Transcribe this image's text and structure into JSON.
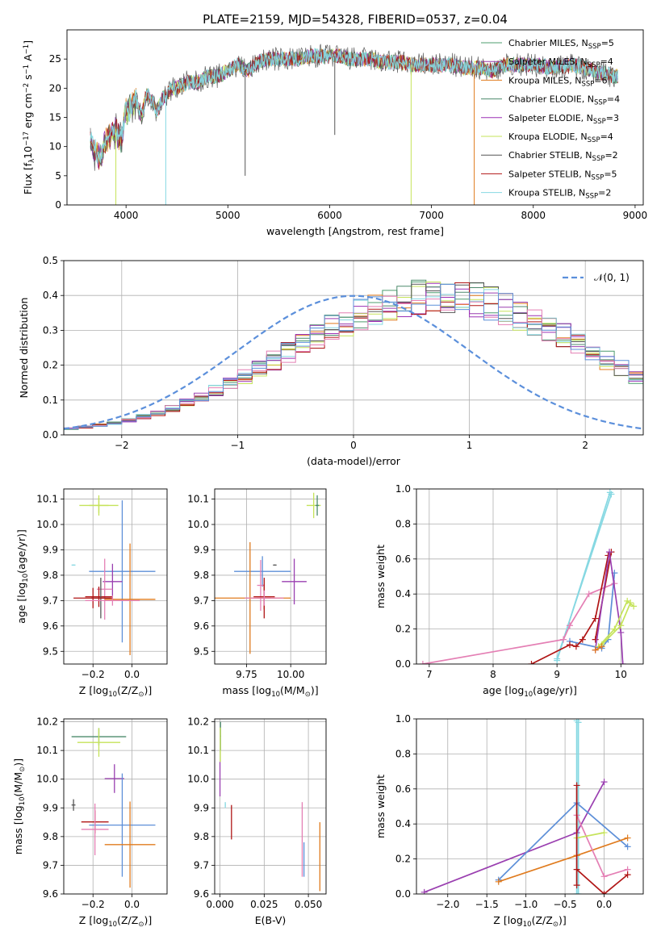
{
  "colors": [
    "#4c9c6e",
    "#9a3fb0",
    "#e07b1e",
    "#4c8a6c",
    "#9b30b5",
    "#c5e35a",
    "#555555",
    "#b01515",
    "#86d8e2",
    "#e47fb4",
    "#5d8fd8"
  ],
  "chart_data": [
    {
      "id": "spectrum",
      "type": "line",
      "title": "PLATE=2159, MJD=54328, FIBERID=0537, z=0.04",
      "xlabel": "wavelength [Angstrom, rest frame]",
      "ylabel": "Flux [f",
      "ylabel_sub": "λ",
      "ylabel_mid": "10",
      "ylabel_sup": "−17",
      "ylabel_units": " erg cm",
      "ylabel_sup2": "−2",
      "ylabel_units2": " s",
      "ylabel_sup3": "−1",
      "ylabel_units3": " A",
      "ylabel_sup4": "−1",
      "ylabel_end": "]",
      "xlim": [
        3420,
        9080
      ],
      "ylim": [
        0,
        30
      ],
      "xticks": [
        "4000",
        "5000",
        "6000",
        "7000",
        "8000",
        "9000"
      ],
      "xtick_values": [
        4000,
        5000,
        6000,
        7000,
        8000,
        9000
      ],
      "yticks": [
        "0",
        "5",
        "10",
        "15",
        "20",
        "25"
      ],
      "ytick_values": [
        0,
        5,
        10,
        15,
        20,
        25
      ],
      "continuum": {
        "x": [
          3650,
          3700,
          3750,
          3800,
          3850,
          3900,
          3950,
          4000,
          4050,
          4100,
          4150,
          4200,
          4250,
          4300,
          4350,
          4400,
          4450,
          4500,
          4600,
          4700,
          4800,
          4900,
          5000,
          5100,
          5200,
          5300,
          5400,
          5500,
          5600,
          5700,
          5800,
          5900,
          6000,
          6100,
          6200,
          6300,
          6400,
          6500,
          6600,
          6700,
          6800,
          6900,
          7000,
          7100,
          7200,
          7300,
          7400,
          7500,
          7600,
          7700,
          7800,
          7900,
          8000,
          8200,
          8400,
          8600,
          8800
        ],
        "y": [
          11,
          9,
          8,
          11,
          12,
          13,
          11,
          16,
          17,
          18,
          15,
          19,
          18,
          16,
          18,
          19,
          20,
          20,
          21,
          21,
          22,
          22,
          23,
          24,
          23,
          24.5,
          25,
          25,
          25,
          25,
          25.5,
          25.5,
          25.5,
          25.5,
          25,
          25,
          25,
          24.5,
          24.5,
          24.5,
          24,
          24,
          24,
          24,
          24,
          23.5,
          23.5,
          23.5,
          23,
          24,
          24,
          24,
          24,
          23.5,
          24,
          23,
          22
        ]
      },
      "series": [
        {
          "name": "Chabrier MILES, N",
          "sub": "SSP",
          "count": "=5"
        },
        {
          "name": "Salpeter MILES, N",
          "sub": "SSP",
          "count": "=4"
        },
        {
          "name": "Kroupa MILES, N",
          "sub": "SSP",
          "count": "=6"
        },
        {
          "name": "Chabrier ELODIE, N",
          "sub": "SSP",
          "count": "=4"
        },
        {
          "name": "Salpeter ELODIE, N",
          "sub": "SSP",
          "count": "=3"
        },
        {
          "name": "Kroupa ELODIE, N",
          "sub": "SSP",
          "count": "=4"
        },
        {
          "name": "Chabrier STELIB, N",
          "sub": "SSP",
          "count": "=2"
        },
        {
          "name": "Salpeter STELIB, N",
          "sub": "SSP",
          "count": "=5"
        },
        {
          "name": "Kroupa STELIB, N",
          "sub": "SSP",
          "count": "=2"
        }
      ],
      "drops": [
        {
          "x": 3900,
          "color": 5
        },
        {
          "x": 4390,
          "color": 8
        },
        {
          "x": 5170,
          "color": 6,
          "y": 5
        },
        {
          "x": 6050,
          "color": 6,
          "y": 12
        },
        {
          "x": 6800,
          "color": 5
        },
        {
          "x": 7420,
          "color": 2
        }
      ],
      "legend": "upper right"
    },
    {
      "id": "residuals",
      "type": "histogram",
      "xlabel": "(data-model)/error",
      "ylabel": "Normed distribution",
      "xlim": [
        -2.5,
        2.5
      ],
      "ylim": [
        0,
        0.5
      ],
      "xticks": [
        "−2",
        "−1",
        "0",
        "1",
        "2"
      ],
      "xtick_values": [
        -2,
        -1,
        0,
        1,
        2
      ],
      "yticks": [
        "0.0",
        "0.1",
        "0.2",
        "0.3",
        "0.4",
        "0.5"
      ],
      "ytick_values": [
        0,
        0.1,
        0.2,
        0.3,
        0.4,
        0.5
      ],
      "bin_width": 0.125,
      "base": [
        0.018,
        0.022,
        0.028,
        0.034,
        0.042,
        0.052,
        0.063,
        0.076,
        0.091,
        0.108,
        0.126,
        0.146,
        0.168,
        0.19,
        0.213,
        0.236,
        0.26,
        0.283,
        0.305,
        0.326,
        0.345,
        0.362,
        0.376,
        0.388,
        0.396,
        0.4,
        0.4,
        0.396,
        0.388,
        0.376,
        0.362,
        0.345,
        0.326,
        0.305,
        0.283,
        0.26,
        0.236,
        0.213,
        0.19,
        0.168,
        0.146,
        0.126,
        0.108,
        0.091,
        0.076,
        0.063,
        0.052,
        0.042,
        0.034,
        0.028
      ],
      "hist_series": 11,
      "normal_label": "𝒩(0, 1)",
      "legend": "upper right"
    },
    {
      "id": "age-vs-Z",
      "type": "scatter",
      "xlabel": "Z [log",
      "xlabel_sub": "10",
      "xlabel_mid": "(Z/Z",
      "xlabel_sub2": "⊙",
      "xlabel_end": ")]",
      "ylabel": "age  [log",
      "ylabel_sub": "10",
      "ylabel_end": "(age/yr)]",
      "xlim": [
        -0.35,
        0.18
      ],
      "ylim": [
        9.45,
        10.14
      ],
      "xticks": [
        "−0.2",
        "0.0"
      ],
      "xtick_values": [
        -0.2,
        0
      ],
      "yticks": [
        "9.5",
        "9.6",
        "9.7",
        "9.8",
        "9.9",
        "10.0",
        "10.1"
      ],
      "ytick_values": [
        9.5,
        9.6,
        9.7,
        9.8,
        9.9,
        10.0,
        10.1
      ],
      "points": [
        {
          "x": -0.17,
          "y": 10.075,
          "xerr": 0.1,
          "yerr": 0.04,
          "color": 5
        },
        {
          "x": -0.17,
          "y": 10.075,
          "xerr": 0.05,
          "yerr": 0.03,
          "color": 5
        },
        {
          "x": -0.3,
          "y": 9.84,
          "xerr": 0.01,
          "yerr": 0.002,
          "color": 8
        },
        {
          "x": -0.05,
          "y": 9.815,
          "xerr": 0.17,
          "yerr": 0.28,
          "color": 10
        },
        {
          "x": -0.1,
          "y": 9.775,
          "xerr": 0.05,
          "yerr": 0.07,
          "color": 1
        },
        {
          "x": -0.14,
          "y": 9.745,
          "xerr": 0.04,
          "yerr": 0.12,
          "color": 9
        },
        {
          "x": -0.17,
          "y": 9.715,
          "xerr": 0.07,
          "yerr": 0.04,
          "color": 7
        },
        {
          "x": -0.16,
          "y": 9.71,
          "xerr": 0.05,
          "yerr": 0.08,
          "color": 6
        },
        {
          "x": -0.2,
          "y": 9.71,
          "xerr": 0.1,
          "yerr": 0.04,
          "color": 7
        },
        {
          "x": -0.01,
          "y": 9.705,
          "xerr": 0.13,
          "yerr": 0.22,
          "color": 2
        },
        {
          "x": -0.1,
          "y": 9.7,
          "xerr": 0.14,
          "yerr": 0.02,
          "color": 9
        }
      ]
    },
    {
      "id": "age-vs-mass",
      "type": "scatter",
      "xlabel": "mass [log",
      "xlabel_sub": "10",
      "xlabel_mid": "(M/M",
      "xlabel_sub2": "⊙",
      "xlabel_end": ")]",
      "xlim": [
        9.57,
        10.2
      ],
      "ylim": [
        9.45,
        10.14
      ],
      "xticks": [
        "9.75",
        "10.00"
      ],
      "xtick_values": [
        9.75,
        10.0
      ],
      "yticks": [
        "9.5",
        "9.6",
        "9.7",
        "9.8",
        "9.9",
        "10.0",
        "10.1"
      ],
      "ytick_values": [
        9.5,
        9.6,
        9.7,
        9.8,
        9.9,
        10.0,
        10.1
      ],
      "points": [
        {
          "x": 10.13,
          "y": 10.075,
          "xerr": 0.04,
          "yerr": 0.05,
          "color": 5
        },
        {
          "x": 10.15,
          "y": 10.075,
          "xerr": 0.01,
          "yerr": 0.04,
          "color": 3
        },
        {
          "x": 9.91,
          "y": 9.84,
          "xerr": 0.01,
          "yerr": 0.002,
          "color": 6
        },
        {
          "x": 9.84,
          "y": 9.815,
          "xerr": 0.16,
          "yerr": 0.06,
          "color": 10
        },
        {
          "x": 10.02,
          "y": 9.775,
          "xerr": 0.07,
          "yerr": 0.09,
          "color": 1
        },
        {
          "x": 9.83,
          "y": 9.76,
          "xerr": 0.02,
          "yerr": 0.1,
          "color": 9
        },
        {
          "x": 9.85,
          "y": 9.715,
          "xerr": 0.06,
          "yerr": 0.05,
          "color": 7
        },
        {
          "x": 9.85,
          "y": 9.71,
          "xerr": 0.04,
          "yerr": 0.08,
          "color": 7
        },
        {
          "x": 9.77,
          "y": 9.71,
          "xerr": 0.23,
          "yerr": 0.22,
          "color": 2
        },
        {
          "x": 9.85,
          "y": 9.71,
          "xerr": 0.11,
          "yerr": 0.03,
          "color": 9
        }
      ]
    },
    {
      "id": "mass-weight-vs-age",
      "type": "line",
      "xlabel": "age  [log",
      "xlabel_sub": "10",
      "xlabel_end": "(age/yr)]",
      "ylabel": "mass weight",
      "xlim": [
        6.8,
        10.35
      ],
      "ylim": [
        0,
        1
      ],
      "xticks": [
        "7",
        "8",
        "9",
        "10"
      ],
      "xtick_values": [
        7,
        8,
        9,
        10
      ],
      "yticks": [
        "0.0",
        "0.2",
        "0.4",
        "0.6",
        "0.8",
        "1.0"
      ],
      "ytick_values": [
        0,
        0.2,
        0.4,
        0.6,
        0.8,
        1.0
      ],
      "series": [
        {
          "color": 8,
          "x": [
            9.0,
            9.83
          ],
          "y": [
            0.02,
            0.98
          ]
        },
        {
          "color": 8,
          "x": [
            9.0,
            9.85
          ],
          "y": [
            0.03,
            0.97
          ]
        },
        {
          "color": 9,
          "x": [
            6.9,
            9.1,
            9.2,
            9.5,
            9.9
          ],
          "y": [
            0.0,
            0.14,
            0.22,
            0.4,
            0.46
          ]
        },
        {
          "color": 10,
          "x": [
            9.2,
            9.7,
            9.8,
            9.9
          ],
          "y": [
            0.13,
            0.09,
            0.14,
            0.52
          ]
        },
        {
          "color": 7,
          "x": [
            8.6,
            9.2,
            9.3,
            9.4,
            9.6,
            9.8
          ],
          "y": [
            0.0,
            0.11,
            0.1,
            0.14,
            0.26,
            0.62
          ]
        },
        {
          "color": 7,
          "x": [
            9.6,
            9.85
          ],
          "y": [
            0.14,
            0.64
          ]
        },
        {
          "color": 1,
          "x": [
            9.6,
            9.82,
            10.0,
            10.03
          ],
          "y": [
            0.08,
            0.64,
            0.18,
            0.0
          ]
        },
        {
          "color": 5,
          "x": [
            9.65,
            9.9,
            10.1,
            10.2
          ],
          "y": [
            0.1,
            0.2,
            0.36,
            0.33
          ]
        },
        {
          "color": 5,
          "x": [
            9.7,
            10.0,
            10.15
          ],
          "y": [
            0.11,
            0.22,
            0.35
          ]
        },
        {
          "color": 2,
          "x": [
            9.6,
            9.7
          ],
          "y": [
            0.08,
            0.1
          ]
        }
      ]
    },
    {
      "id": "mass-vs-Z",
      "type": "scatter",
      "xlabel": "Z [log",
      "xlabel_sub": "10",
      "xlabel_mid": "(Z/Z",
      "xlabel_sub2": "⊙",
      "xlabel_end": ")]",
      "ylabel": "mass [log",
      "ylabel_sub": "10",
      "ylabel_mid": "(M/M",
      "ylabel_sub2": "⊙",
      "ylabel_end": ")]",
      "xlim": [
        -0.35,
        0.18
      ],
      "ylim": [
        9.6,
        10.21
      ],
      "xticks": [
        "−0.2",
        "0.0"
      ],
      "xtick_values": [
        -0.2,
        0
      ],
      "yticks": [
        "9.6",
        "9.7",
        "9.8",
        "9.9",
        "10.0",
        "10.1",
        "10.2"
      ],
      "ytick_values": [
        9.6,
        9.7,
        9.8,
        9.9,
        10.0,
        10.1,
        10.2
      ],
      "points": [
        {
          "x": -0.17,
          "y": 10.148,
          "xerr": 0.14,
          "yerr": 0.03,
          "color": 3
        },
        {
          "x": -0.17,
          "y": 10.128,
          "xerr": 0.11,
          "yerr": 0.05,
          "color": 5
        },
        {
          "x": -0.09,
          "y": 10.002,
          "xerr": 0.05,
          "yerr": 0.05,
          "color": 1
        },
        {
          "x": -0.3,
          "y": 9.91,
          "xerr": 0.01,
          "yerr": 0.02,
          "color": 6
        },
        {
          "x": -0.19,
          "y": 9.851,
          "xerr": 0.07,
          "yerr": 0.04,
          "color": 7
        },
        {
          "x": -0.05,
          "y": 9.84,
          "xerr": 0.17,
          "yerr": 0.18,
          "color": 10
        },
        {
          "x": -0.19,
          "y": 9.825,
          "xerr": 0.07,
          "yerr": 0.09,
          "color": 9
        },
        {
          "x": -0.01,
          "y": 9.772,
          "xerr": 0.13,
          "yerr": 0.15,
          "color": 2
        }
      ]
    },
    {
      "id": "mass-vs-ebv",
      "type": "scatter",
      "xlabel": "E(B-V)",
      "xlim": [
        -0.003,
        0.06
      ],
      "ylim": [
        9.6,
        10.21
      ],
      "xticks": [
        "0.000",
        "0.025",
        "0.050"
      ],
      "xtick_values": [
        0,
        0.025,
        0.05
      ],
      "yticks": [
        "9.6",
        "9.7",
        "9.8",
        "9.9",
        "10.0",
        "10.1",
        "10.2"
      ],
      "ytick_values": [
        9.6,
        9.7,
        9.8,
        9.9,
        10.0,
        10.1,
        10.2
      ],
      "points": [
        {
          "x": 0.0003,
          "y": 10.15,
          "xerr": 0.0003,
          "yerr": 0.05,
          "color": 3
        },
        {
          "x": 0.0002,
          "y": 10.12,
          "xerr": 0.0002,
          "yerr": 0.06,
          "color": 5
        },
        {
          "x": 0.0,
          "y": 10.0,
          "xerr": 0.0,
          "yerr": 0.06,
          "color": 1
        },
        {
          "x": 0.003,
          "y": 9.91,
          "xerr": 0.0003,
          "yerr": 0.01,
          "color": 8
        },
        {
          "x": 0.0065,
          "y": 9.85,
          "xerr": 0.0,
          "yerr": 0.06,
          "color": 7
        },
        {
          "x": 0.0465,
          "y": 9.79,
          "xerr": 0.0,
          "yerr": 0.13,
          "color": 9
        },
        {
          "x": 0.0475,
          "y": 9.72,
          "xerr": 0.0,
          "yerr": 0.06,
          "color": 10
        },
        {
          "x": 0.0565,
          "y": 9.73,
          "xerr": 0.0,
          "yerr": 0.12,
          "color": 2
        }
      ]
    },
    {
      "id": "mass-weight-vs-Z",
      "type": "line",
      "xlabel": "Z [log",
      "xlabel_sub": "10",
      "xlabel_mid": "(Z/Z",
      "xlabel_sub2": "⊙",
      "xlabel_end": ")]",
      "ylabel": "mass weight",
      "xlim": [
        -2.4,
        0.5
      ],
      "ylim": [
        0,
        1
      ],
      "xticks": [
        "−2.0",
        "−1.5",
        "−1.0",
        "−0.5",
        "0.0"
      ],
      "xtick_values": [
        -2.0,
        -1.5,
        -1.0,
        -0.5,
        0.0
      ],
      "yticks": [
        "0.0",
        "0.2",
        "0.4",
        "0.6",
        "0.8",
        "1.0"
      ],
      "ytick_values": [
        0,
        0.2,
        0.4,
        0.6,
        0.8,
        1.0
      ],
      "series": [
        {
          "color": 8,
          "x": [
            -0.35,
            -0.35
          ],
          "y": [
            0.0,
            0.99
          ]
        },
        {
          "color": 8,
          "x": [
            -0.33,
            -0.33
          ],
          "y": [
            0.0,
            0.98
          ]
        },
        {
          "color": 1,
          "x": [
            -2.3,
            -0.35,
            0.0
          ],
          "y": [
            0.01,
            0.35,
            0.64
          ]
        },
        {
          "color": 10,
          "x": [
            -1.35,
            -0.35,
            0.3
          ],
          "y": [
            0.08,
            0.52,
            0.27
          ]
        },
        {
          "color": 2,
          "x": [
            -1.35,
            -0.35,
            0.3
          ],
          "y": [
            0.07,
            0.22,
            0.32
          ]
        },
        {
          "color": 9,
          "x": [
            -0.35,
            0.0,
            0.3
          ],
          "y": [
            0.45,
            0.1,
            0.14
          ]
        },
        {
          "color": 7,
          "x": [
            -0.35,
            0.0,
            0.3
          ],
          "y": [
            0.14,
            0.0,
            0.11
          ]
        },
        {
          "color": 5,
          "x": [
            -0.35,
            0.0
          ],
          "y": [
            0.32,
            0.35
          ]
        },
        {
          "color": 7,
          "x": [
            -0.35,
            -0.35
          ],
          "y": [
            0.05,
            0.62
          ]
        }
      ]
    }
  ]
}
